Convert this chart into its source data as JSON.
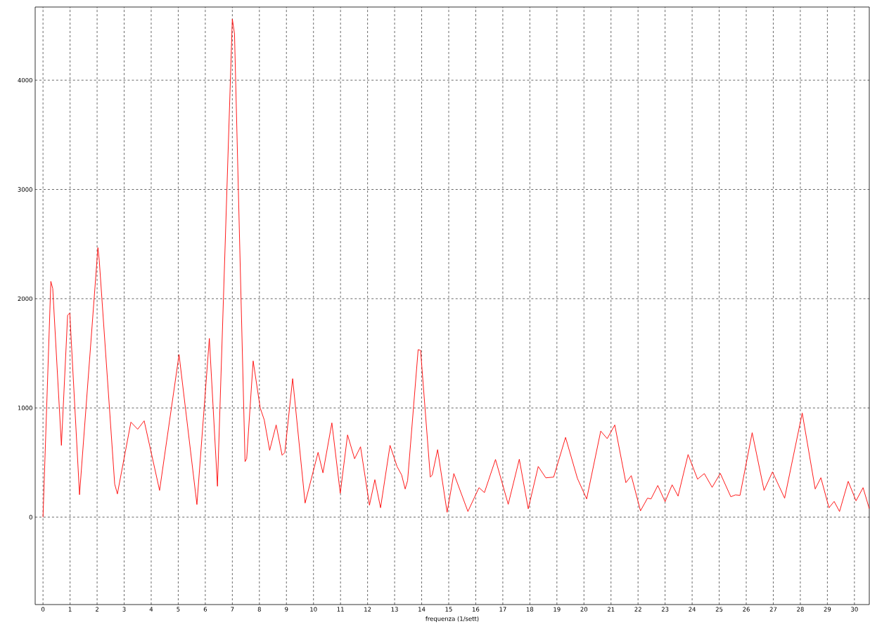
{
  "chart_data": {
    "type": "line",
    "xlabel": "frequenza (1/sett)",
    "x": [
      0,
      0.29,
      0.36,
      0.68,
      0.91,
      0.99,
      1.35,
      2.03,
      2.08,
      2.65,
      2.75,
      3.25,
      3.5,
      3.74,
      4.31,
      5.03,
      5.69,
      6.15,
      6.45,
      7.0,
      7.08,
      7.47,
      7.53,
      7.77,
      8.03,
      8.18,
      8.38,
      8.62,
      8.84,
      8.94,
      9.23,
      9.69,
      10.17,
      10.35,
      10.68,
      10.99,
      11.26,
      11.52,
      11.74,
      12.07,
      12.27,
      12.48,
      12.83,
      13.09,
      13.26,
      13.39,
      13.48,
      13.87,
      13.96,
      14.32,
      14.39,
      14.59,
      14.94,
      15.19,
      15.71,
      16.12,
      16.32,
      16.73,
      17.2,
      17.61,
      17.94,
      18.31,
      18.59,
      18.88,
      19.32,
      19.76,
      20.1,
      20.62,
      20.86,
      21.14,
      21.55,
      21.75,
      22.09,
      22.35,
      22.48,
      22.73,
      23.0,
      23.26,
      23.48,
      23.85,
      24.2,
      24.45,
      24.74,
      25.04,
      25.43,
      25.6,
      25.77,
      26.22,
      26.66,
      26.97,
      27.42,
      28.07,
      28.55,
      28.76,
      29.06,
      29.25,
      29.45,
      29.77,
      30.06,
      30.32,
      30.55
    ],
    "series": [
      {
        "color": "#ff0000",
        "values": [
          0,
          2158,
          2093,
          657,
          1849,
          1868,
          206,
          2467,
          2350,
          303,
          213,
          870,
          805,
          882,
          245,
          1488,
          116,
          1636,
          283,
          4560,
          4425,
          509,
          535,
          1430,
          1000,
          890,
          612,
          844,
          567,
          592,
          1268,
          129,
          593,
          406,
          863,
          219,
          753,
          535,
          644,
          110,
          343,
          86,
          657,
          464,
          386,
          258,
          335,
          1533,
          1527,
          367,
          386,
          618,
          45,
          399,
          52,
          270,
          225,
          528,
          118,
          530,
          77,
          464,
          360,
          367,
          730,
          354,
          167,
          788,
          719,
          844,
          316,
          380,
          58,
          174,
          167,
          290,
          142,
          296,
          193,
          573,
          348,
          399,
          273,
          401,
          187,
          204,
          200,
          773,
          245,
          414,
          174,
          953,
          258,
          361,
          86,
          144,
          52,
          328,
          150,
          270,
          77
        ]
      }
    ],
    "xlim": [
      -0.29,
      30.55
    ],
    "ylim": [
      -800,
      4670
    ],
    "xticks": [
      0,
      1,
      2,
      3,
      4,
      5,
      6,
      7,
      8,
      9,
      10,
      11,
      12,
      13,
      14,
      15,
      16,
      17,
      18,
      19,
      20,
      21,
      22,
      23,
      24,
      25,
      26,
      27,
      28,
      29,
      30
    ],
    "yticks": [
      0,
      1000,
      2000,
      3000,
      4000
    ],
    "grid": true
  }
}
